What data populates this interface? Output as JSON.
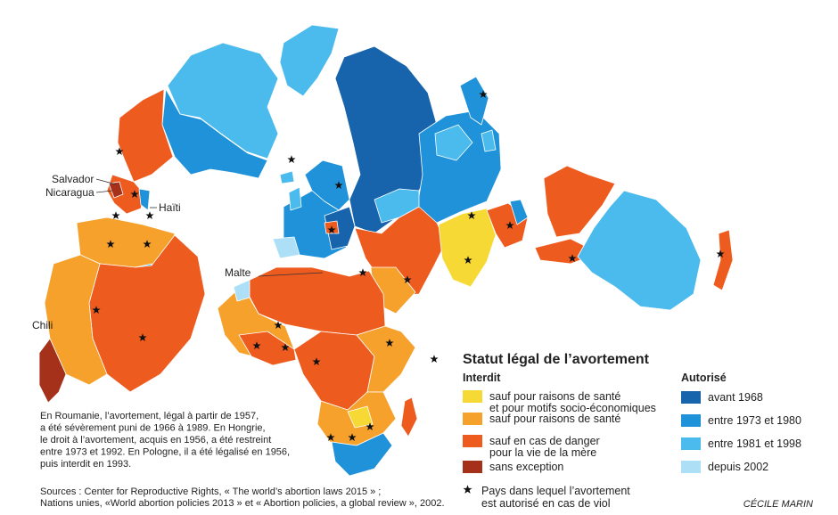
{
  "map_labels": {
    "salvador": "Salvador",
    "nicaragua": "Nicaragua",
    "haiti": "Haïti",
    "malte": "Malte",
    "chili": "Chili"
  },
  "legend": {
    "title": "Statut légal de l’avortement",
    "forbidden": {
      "heading": "Interdit",
      "items": [
        {
          "label_lines": [
            "sauf pour raisons de santé",
            "et pour motifs socio-économiques"
          ],
          "color": "#f7d935"
        },
        {
          "label_lines": [
            "sauf pour raisons de santé"
          ],
          "color": "#f6a12c"
        },
        {
          "label_lines": [
            "sauf en cas de danger",
            "pour la vie de la mère"
          ],
          "color": "#ee5b1f"
        },
        {
          "label_lines": [
            "sans exception"
          ],
          "color": "#a6311a"
        }
      ]
    },
    "allowed": {
      "heading": "Autorisé",
      "items": [
        {
          "label_lines": [
            "avant 1968"
          ],
          "color": "#1764ad"
        },
        {
          "label_lines": [
            "entre 1973 et 1980"
          ],
          "color": "#1f92da"
        },
        {
          "label_lines": [
            "entre 1981 et 1998"
          ],
          "color": "#4bbaec"
        },
        {
          "label_lines": [
            "depuis 2002"
          ],
          "color": "#ade0f6"
        }
      ]
    },
    "star_note": [
      "Pays dans lequel l’avortement",
      "est autorisé en cas de viol"
    ]
  },
  "note": [
    "En Roumanie, l’avortement, légal à partir de 1957,",
    "a été sévèrement puni de 1966 à 1989. En Hongrie,",
    "le droit à l’avortement, acquis en 1956, a été restreint",
    "entre 1973 et 1992. En Pologne, il a été légalisé en 1956,",
    "puis interdit en 1993."
  ],
  "sources": [
    "Sources : Center for Reproductive Rights, « The world’s abortion laws 2015 » ;",
    "Nations unies, «World abortion policies 2013 » et « Abortion policies, a global review », 2002."
  ],
  "credit": "CÉCILE MARIN"
}
